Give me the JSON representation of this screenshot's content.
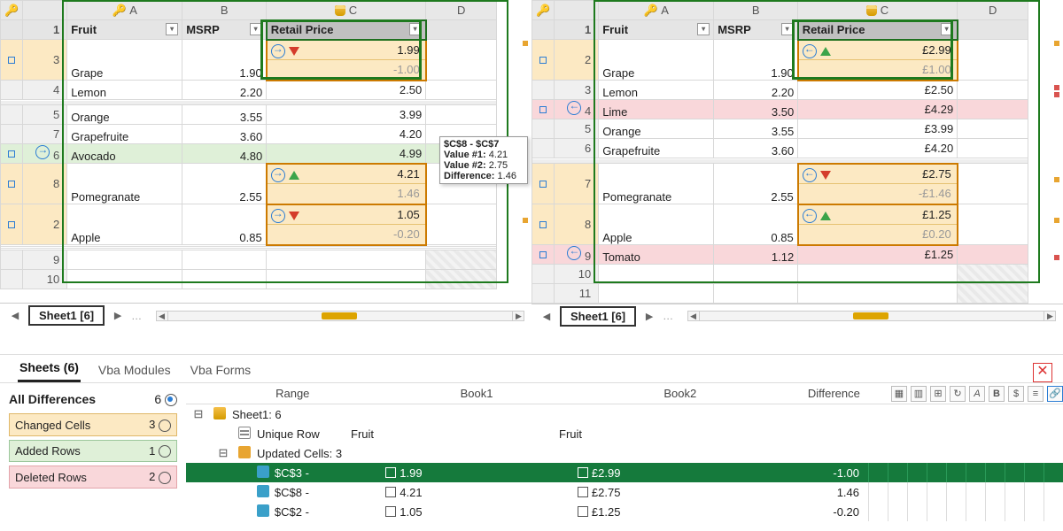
{
  "colors": {
    "changed_bg": "#fce9c3",
    "added_bg": "#dff0d8",
    "deleted_bg": "#f9d7da",
    "sel_border": "#1e7a1e",
    "accent_orange": "#e8a531",
    "arrow_blue": "#2b7dd4",
    "tri_down": "#d43c2b",
    "tri_up": "#3ca44a",
    "diff_sel_row": "#157a3c"
  },
  "columns": {
    "A": "A",
    "B": "B",
    "C": "C",
    "D": "D"
  },
  "header_row": {
    "A": "Fruit",
    "B": "MSRP",
    "C": "Retail Price"
  },
  "left": {
    "sheet_tab": "Sheet1 [6]",
    "rows": [
      {
        "num": 1,
        "type": "filter"
      },
      {
        "num": 3,
        "type": "chg",
        "A": "Grape",
        "B": "1.90",
        "C_cell": {
          "top": "1.99",
          "bot": "-1.00",
          "tri": "dn",
          "dir": "r"
        }
      },
      {
        "num": 4,
        "type": "plain",
        "A": "Lemon",
        "B": "2.20",
        "C": "2.50"
      },
      {
        "type": "sep"
      },
      {
        "num": 5,
        "type": "plain",
        "A": "Orange",
        "B": "3.55",
        "C": "3.99"
      },
      {
        "num": 7,
        "type": "plain",
        "A": "Grapefruite",
        "B": "3.60",
        "C": "4.20"
      },
      {
        "num": 6,
        "type": "add",
        "A": "Avocado",
        "B": "4.80",
        "C": "4.99",
        "gutter_arrow": "r"
      },
      {
        "num": 8,
        "type": "chg",
        "A": "Pomegranate",
        "B": "2.55",
        "C_cell": {
          "top": "4.21",
          "bot": "1.46",
          "tri": "up",
          "dir": "r"
        }
      },
      {
        "num": 2,
        "type": "chg",
        "A": "Apple",
        "B": "0.85",
        "C_cell": {
          "top": "1.05",
          "bot": "-0.20",
          "tri": "dn",
          "dir": "r"
        }
      },
      {
        "type": "sep"
      },
      {
        "num": 9,
        "type": "empty"
      },
      {
        "num": 10,
        "type": "empty"
      }
    ],
    "sel_C_header": true
  },
  "right": {
    "sheet_tab": "Sheet1 [6]",
    "rows": [
      {
        "num": 1,
        "type": "filter"
      },
      {
        "num": 2,
        "type": "chg",
        "A": "Grape",
        "B": "1.90",
        "C_cell": {
          "top": "£2.99",
          "bot": "£1.00",
          "tri": "up",
          "dir": "l"
        }
      },
      {
        "num": 3,
        "type": "plain",
        "A": "Lemon",
        "B": "2.20",
        "C": "£2.50"
      },
      {
        "num": 4,
        "type": "del",
        "A": "Lime",
        "B": "3.50",
        "C": "£4.29",
        "gutter_arrow": "l"
      },
      {
        "num": 5,
        "type": "plain",
        "A": "Orange",
        "B": "3.55",
        "C": "£3.99"
      },
      {
        "num": 6,
        "type": "plain",
        "A": "Grapefruite",
        "B": "3.60",
        "C": "£4.20"
      },
      {
        "type": "sep"
      },
      {
        "num": 7,
        "type": "chg",
        "A": "Pomegranate",
        "B": "2.55",
        "C_cell": {
          "top": "£2.75",
          "bot": "-£1.46",
          "tri": "dn",
          "dir": "l"
        }
      },
      {
        "num": 8,
        "type": "chg",
        "A": "Apple",
        "B": "0.85",
        "C_cell": {
          "top": "£1.25",
          "bot": "£0.20",
          "tri": "up",
          "dir": "l"
        }
      },
      {
        "num": 9,
        "type": "del",
        "A": "Tomato",
        "B": "1.12",
        "C": "£1.25",
        "gutter_arrow": "l"
      },
      {
        "num": 10,
        "type": "empty"
      },
      {
        "num": 11,
        "type": "empty"
      }
    ],
    "sel_C_header": true
  },
  "tooltip": {
    "title": "$C$8 - $C$7",
    "v1_label": "Value #1:",
    "v1": "4.21",
    "v2_label": "Value #2:",
    "v2": "2.75",
    "d_label": "Difference:",
    "d": "1.46"
  },
  "bottom_tabs": {
    "sheets": "Sheets  (6)",
    "vba_modules": "Vba Modules",
    "vba_forms": "Vba Forms"
  },
  "legend": {
    "title": "All Differences",
    "total": "6",
    "items": [
      {
        "label": "Changed Cells",
        "count": "3",
        "cls": "chg-i"
      },
      {
        "label": "Added Rows",
        "count": "1",
        "cls": "add-i"
      },
      {
        "label": "Deleted Rows",
        "count": "2",
        "cls": "del-i"
      }
    ]
  },
  "diff_header": {
    "range": "Range",
    "b1": "Book1",
    "b2": "Book2",
    "diff": "Difference"
  },
  "diff_rows": {
    "sheet_label": "Sheet1: 6",
    "unique_row_label": "Unique Row",
    "unique_row_b1": "Fruit",
    "unique_row_b2": "Fruit",
    "updated_label": "Updated Cells: 3",
    "cells": [
      {
        "range": "$C$3 -",
        "b1": "1.99",
        "b2": "£2.99",
        "diff": "-1.00",
        "sel": true
      },
      {
        "range": "$C$8 -",
        "b1": "4.21",
        "b2": "£2.75",
        "diff": "1.46"
      },
      {
        "range": "$C$2 -",
        "b1": "1.05",
        "b2": "£1.25",
        "diff": "-0.20"
      }
    ]
  }
}
